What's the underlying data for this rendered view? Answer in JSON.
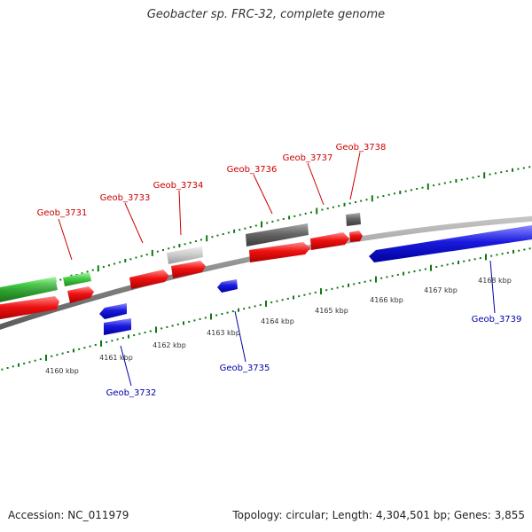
{
  "title": "Geobacter sp. FRC-32, complete genome",
  "footer": {
    "accession": "Accession: NC_011979",
    "summary": "Topology: circular; Length: 4,304,501 bp; Genes: 3,855"
  },
  "colors": {
    "forward_gene": "#ee1111",
    "reverse_gene": "#1a1adf",
    "rna_gene": "#44cc44",
    "pseudo_gene": "#666666",
    "partial_gene": "#bbbbbb",
    "tick": "#117711",
    "backbone": "#888888",
    "forward_label": "#cc0000",
    "reverse_label": "#0000aa"
  },
  "scale_labels": [
    "4160 kbp",
    "4161 kbp",
    "4162 kbp",
    "4163 kbp",
    "4164 kbp",
    "4165 kbp",
    "4166 kbp",
    "4167 kbp",
    "4168 kbp"
  ],
  "gene_labels": {
    "forward": [
      "Geob_3731",
      "Geob_3733",
      "Geob_3734",
      "Geob_3736",
      "Geob_3737",
      "Geob_3738"
    ],
    "reverse": [
      "Geob_3732",
      "Geob_3735",
      "Geob_3739"
    ]
  }
}
